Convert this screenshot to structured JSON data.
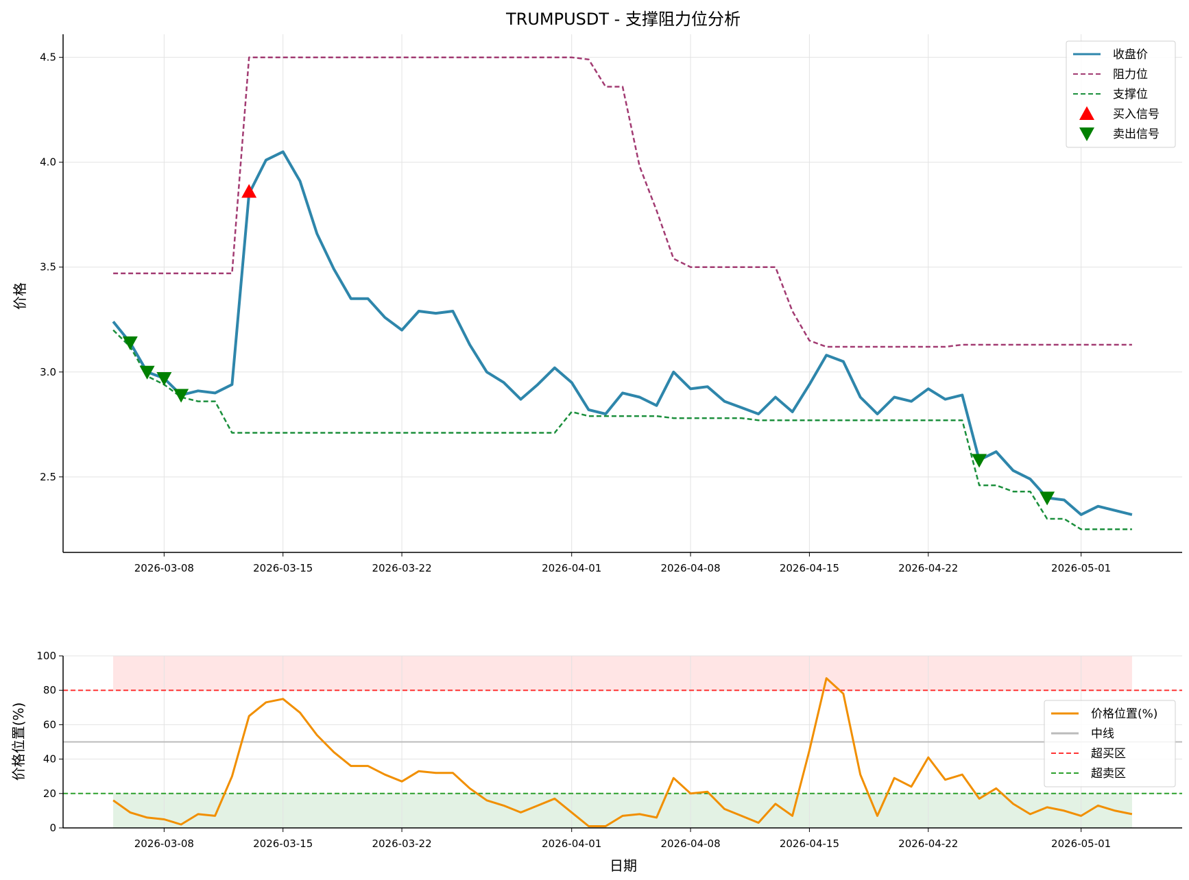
{
  "chart_data": [
    {
      "type": "line",
      "title": "TRUMPUSDT - 支撑阻力位分析",
      "xlabel": "",
      "ylabel": "价格",
      "x_start": "2026-03-05",
      "x_ticks": [
        "2026-03-08",
        "2026-03-15",
        "2026-03-22",
        "2026-04-01",
        "2026-04-08",
        "2026-04-15",
        "2026-04-22",
        "2026-05-01"
      ],
      "y_ticks": [
        "2.5",
        "3.0",
        "3.5",
        "4.0",
        "4.5"
      ],
      "ylim": [
        2.14,
        4.61
      ],
      "grid": true,
      "legend_position": "top-right",
      "series": [
        {
          "name": "收盘价",
          "color": "#2e86ab",
          "style": "solid",
          "values": [
            3.24,
            3.14,
            3.0,
            2.97,
            2.89,
            2.91,
            2.9,
            2.94,
            3.85,
            4.01,
            4.05,
            3.91,
            3.66,
            3.49,
            3.35,
            3.35,
            3.26,
            3.2,
            3.29,
            3.28,
            3.29,
            3.13,
            3.0,
            2.95,
            2.87,
            2.94,
            3.02,
            2.95,
            2.82,
            2.8,
            2.9,
            2.88,
            2.84,
            3.0,
            2.92,
            2.93,
            2.86,
            2.83,
            2.8,
            2.88,
            2.81,
            2.94,
            3.08,
            3.05,
            2.88,
            2.8,
            2.88,
            2.86,
            2.92,
            2.87,
            2.89,
            2.58,
            2.62,
            2.53,
            2.49,
            2.4,
            2.39,
            2.32,
            2.36,
            2.34,
            2.32
          ]
        },
        {
          "name": "阻力位",
          "color": "#a23b72",
          "style": "dashed",
          "values": [
            3.47,
            3.47,
            3.47,
            3.47,
            3.47,
            3.47,
            3.47,
            3.47,
            4.5,
            4.5,
            4.5,
            4.5,
            4.5,
            4.5,
            4.5,
            4.5,
            4.5,
            4.5,
            4.5,
            4.5,
            4.5,
            4.5,
            4.5,
            4.5,
            4.5,
            4.5,
            4.5,
            4.5,
            4.49,
            4.36,
            4.36,
            3.98,
            3.77,
            3.54,
            3.5,
            3.5,
            3.5,
            3.5,
            3.5,
            3.5,
            3.29,
            3.15,
            3.12,
            3.12,
            3.12,
            3.12,
            3.12,
            3.12,
            3.12,
            3.12,
            3.13,
            3.13,
            3.13,
            3.13,
            3.13,
            3.13,
            3.13,
            3.13,
            3.13,
            3.13,
            3.13
          ]
        },
        {
          "name": "支撑位",
          "color": "#1b8f3c",
          "style": "dashed",
          "values": [
            3.2,
            3.12,
            2.98,
            2.94,
            2.88,
            2.86,
            2.86,
            2.71,
            2.71,
            2.71,
            2.71,
            2.71,
            2.71,
            2.71,
            2.71,
            2.71,
            2.71,
            2.71,
            2.71,
            2.71,
            2.71,
            2.71,
            2.71,
            2.71,
            2.71,
            2.71,
            2.71,
            2.81,
            2.79,
            2.79,
            2.79,
            2.79,
            2.79,
            2.78,
            2.78,
            2.78,
            2.78,
            2.78,
            2.77,
            2.77,
            2.77,
            2.77,
            2.77,
            2.77,
            2.77,
            2.77,
            2.77,
            2.77,
            2.77,
            2.77,
            2.77,
            2.46,
            2.46,
            2.43,
            2.43,
            2.3,
            2.3,
            2.25,
            2.25,
            2.25,
            2.25
          ]
        }
      ],
      "buy_signals": [
        {
          "index": 8,
          "value": 3.86
        }
      ],
      "sell_signals": [
        {
          "index": 1,
          "value": 3.14
        },
        {
          "index": 2,
          "value": 3.0
        },
        {
          "index": 3,
          "value": 2.97
        },
        {
          "index": 4,
          "value": 2.89
        },
        {
          "index": 51,
          "value": 2.58
        },
        {
          "index": 55,
          "value": 2.4
        }
      ],
      "legend": [
        {
          "label": "收盘价",
          "kind": "line-solid",
          "color": "#2e86ab"
        },
        {
          "label": "阻力位",
          "kind": "line-dashed",
          "color": "#a23b72"
        },
        {
          "label": "支撑位",
          "kind": "line-dashed",
          "color": "#1b8f3c"
        },
        {
          "label": "买入信号",
          "kind": "triangle-up",
          "color": "#ff0000"
        },
        {
          "label": "卖出信号",
          "kind": "triangle-down",
          "color": "#008000"
        }
      ]
    },
    {
      "type": "line",
      "title": "",
      "xlabel": "日期",
      "ylabel": "价格位置(%)",
      "x_start": "2026-03-05",
      "x_ticks": [
        "2026-03-08",
        "2026-03-15",
        "2026-03-22",
        "2026-04-01",
        "2026-04-08",
        "2026-04-15",
        "2026-04-22",
        "2026-05-01"
      ],
      "y_ticks": [
        "0",
        "20",
        "40",
        "60",
        "80",
        "100"
      ],
      "ylim": [
        0,
        100
      ],
      "grid": true,
      "legend_position": "right",
      "series": [
        {
          "name": "价格位置(%)",
          "color": "#f18f01",
          "style": "solid",
          "values": [
            16,
            9,
            6,
            5,
            2,
            8,
            7,
            30,
            65,
            73,
            75,
            67,
            54,
            44,
            36,
            36,
            31,
            27,
            33,
            32,
            32,
            23,
            16,
            13,
            9,
            13,
            17,
            9,
            1,
            1,
            7,
            8,
            6,
            29,
            20,
            21,
            11,
            7,
            3,
            14,
            7,
            45,
            87,
            78,
            31,
            7,
            29,
            24,
            41,
            28,
            31,
            17,
            23,
            14,
            8,
            12,
            10,
            7,
            13,
            10,
            8
          ]
        }
      ],
      "reference_lines": [
        {
          "name": "中线",
          "value": 50,
          "color": "#bbbbbb",
          "style": "solid"
        },
        {
          "name": "超买区",
          "value": 80,
          "color": "#ff3333",
          "style": "dashed"
        },
        {
          "name": "超卖区",
          "value": 20,
          "color": "#2ca02c",
          "style": "dashed"
        }
      ],
      "bands": [
        {
          "from": 80,
          "to": 100,
          "color": "#ffcccc"
        },
        {
          "from": 0,
          "to": 20,
          "color": "#c8e6c9"
        }
      ],
      "legend": [
        {
          "label": "价格位置(%)",
          "kind": "line-solid",
          "color": "#f18f01"
        },
        {
          "label": "中线",
          "kind": "line-solid",
          "color": "#bbbbbb"
        },
        {
          "label": "超买区",
          "kind": "line-dashed",
          "color": "#ff3333"
        },
        {
          "label": "超卖区",
          "kind": "line-dashed",
          "color": "#2ca02c"
        }
      ]
    }
  ]
}
